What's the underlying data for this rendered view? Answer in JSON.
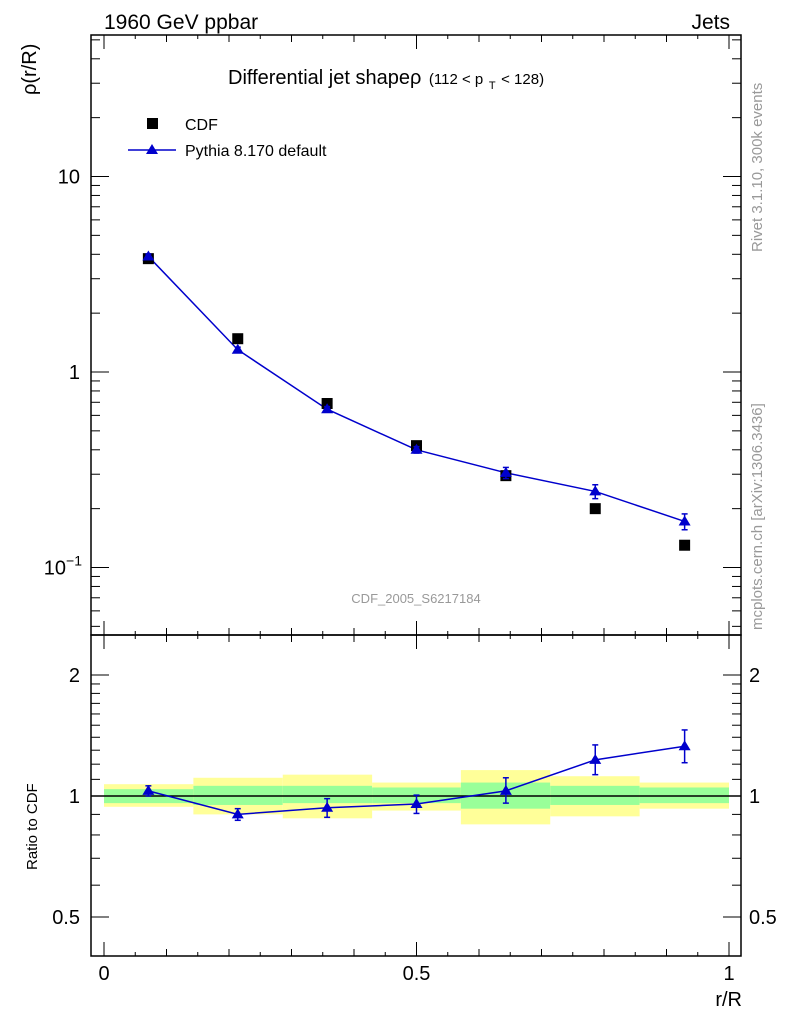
{
  "header": {
    "left": "1960 GeV ppbar",
    "right": "Jets"
  },
  "side_labels": {
    "rivet": "Rivet 3.1.10,  300k events",
    "mcplots": "mcplots.cern.ch [arXiv:1306.3436]"
  },
  "colors": {
    "mc": "#0000cc",
    "data": "#000000",
    "band_inner": "#99ff99",
    "band_outer": "#ffff99",
    "watermark": "#999999"
  },
  "chart_data": [
    {
      "type": "scatter",
      "title": "Differential jet shapeρ",
      "title_sub": "(112 < p",
      "title_sub_index": "T",
      "title_sub_end": " < 128)",
      "ylabel": "ρ(r/R)",
      "yscale": "log",
      "ylim": [
        0.05,
        60
      ],
      "xlim": [
        -0.02,
        1.02
      ],
      "yticks": [
        {
          "value": 0.1,
          "label": "10",
          "exp": "−1"
        },
        {
          "value": 1,
          "label": "1",
          "exp": ""
        },
        {
          "value": 10,
          "label": "10",
          "exp": ""
        }
      ],
      "watermark": "CDF_2005_S6217184",
      "legend": {
        "position": "top-left"
      },
      "series": [
        {
          "name": "CDF",
          "marker": "square",
          "x": [
            0.071,
            0.214,
            0.357,
            0.5,
            0.643,
            0.786,
            0.929
          ],
          "y": [
            3.8,
            1.48,
            0.69,
            0.42,
            0.295,
            0.2,
            0.13
          ],
          "yerr": [
            0.12,
            0.04,
            0.02,
            0.012,
            0.01,
            0.008,
            0.005
          ]
        },
        {
          "name": "Pythia 8.170 default",
          "marker": "triangle",
          "line": true,
          "x": [
            0.071,
            0.214,
            0.357,
            0.5,
            0.643,
            0.786,
            0.929
          ],
          "y": [
            3.9,
            1.3,
            0.645,
            0.4,
            0.305,
            0.245,
            0.172
          ],
          "yerr": [
            0.12,
            0.04,
            0.02,
            0.015,
            0.02,
            0.02,
            0.016
          ]
        }
      ]
    },
    {
      "type": "line",
      "ylabel": "Ratio to CDF",
      "xlabel": "r/R",
      "ylim": [
        0.4,
        2.5
      ],
      "xlim": [
        -0.02,
        1.02
      ],
      "yticks": [
        {
          "value": 0.5,
          "label": "0.5"
        },
        {
          "value": 1,
          "label": "1"
        },
        {
          "value": 2,
          "label": "2"
        }
      ],
      "xticks": [
        {
          "value": 0,
          "label": "0"
        },
        {
          "value": 0.5,
          "label": "0.5"
        },
        {
          "value": 1,
          "label": "1"
        }
      ],
      "bands": {
        "edges": [
          0,
          0.143,
          0.286,
          0.429,
          0.571,
          0.714,
          0.857,
          1.0
        ],
        "inner_low": [
          0.96,
          0.95,
          0.96,
          0.96,
          0.93,
          0.95,
          0.96
        ],
        "inner_high": [
          1.04,
          1.06,
          1.06,
          1.05,
          1.08,
          1.06,
          1.05
        ],
        "outer_low": [
          0.94,
          0.9,
          0.88,
          0.92,
          0.85,
          0.89,
          0.93
        ],
        "outer_high": [
          1.07,
          1.11,
          1.13,
          1.08,
          1.16,
          1.12,
          1.08
        ]
      },
      "series": [
        {
          "name": "Pythia 8.170 default",
          "x": [
            0.071,
            0.214,
            0.357,
            0.5,
            0.643,
            0.786,
            0.929
          ],
          "y": [
            1.03,
            0.9,
            0.935,
            0.955,
            1.03,
            1.23,
            1.33
          ],
          "yerr_low": [
            0.03,
            0.03,
            0.05,
            0.05,
            0.07,
            0.1,
            0.12
          ],
          "yerr_high": [
            0.03,
            0.03,
            0.05,
            0.05,
            0.08,
            0.11,
            0.13
          ]
        }
      ]
    }
  ]
}
